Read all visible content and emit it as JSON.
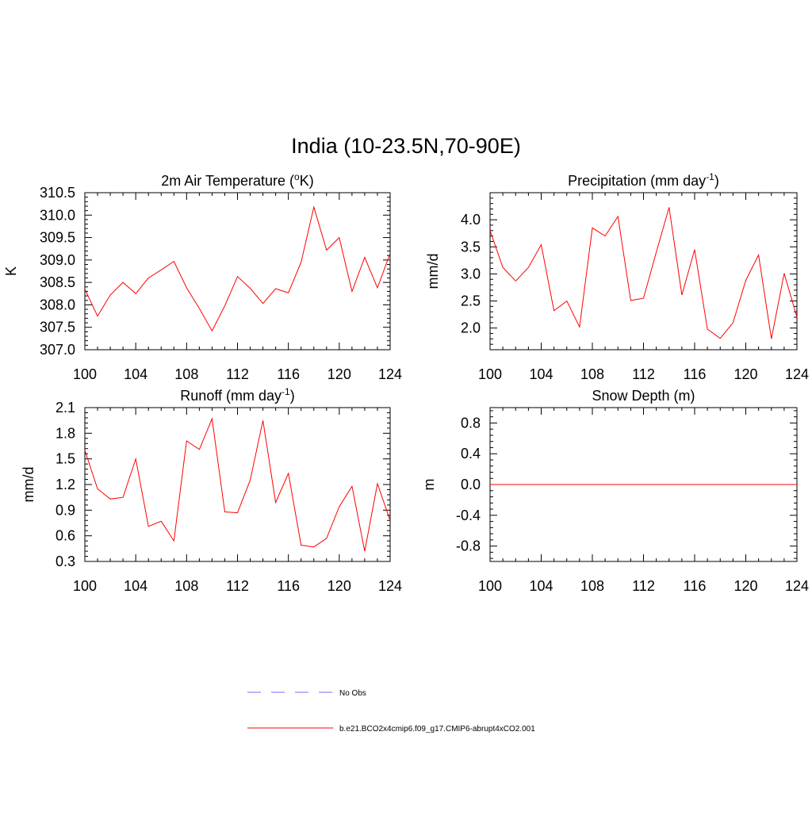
{
  "title": "India (10-23.5N,70-90E)",
  "colors": {
    "model": "#ff0000",
    "obs": "#8c8cff",
    "axis": "#000000"
  },
  "legend": {
    "entries": [
      {
        "label": "No Obs",
        "style": "dashed",
        "color": "#8c8cff"
      },
      {
        "label": "b.e21.BCO2x4cmip6.f09_g17.CMIP6-abrupt4xCO2.001",
        "style": "solid",
        "color": "#ff0000"
      }
    ]
  },
  "chart_data": [
    {
      "type": "line",
      "title": "2m Air Temperature (oK)",
      "title_parts": {
        "pre": "2m Air Temperature (",
        "sup": "o",
        "post": "K)"
      },
      "ylabel": "K",
      "xlim": [
        100,
        124
      ],
      "ylim": [
        307.0,
        310.5
      ],
      "xticks": [
        "100",
        "104",
        "108",
        "112",
        "116",
        "120",
        "124"
      ],
      "yticks": [
        "307.0",
        "307.5",
        "308.0",
        "308.5",
        "309.0",
        "309.5",
        "310.0",
        "310.5"
      ],
      "series": [
        {
          "x": [
            100,
            101,
            102,
            103,
            104,
            105,
            106,
            107,
            108,
            109,
            110,
            111,
            112,
            113,
            114,
            115,
            116,
            117,
            118,
            119,
            120,
            121,
            122,
            123,
            124
          ],
          "values": [
            308.35,
            307.75,
            308.22,
            308.5,
            308.25,
            308.6,
            308.78,
            308.97,
            308.38,
            307.92,
            307.42,
            307.98,
            308.63,
            308.37,
            308.03,
            308.36,
            308.27,
            308.95,
            310.18,
            309.22,
            309.5,
            308.3,
            309.06,
            308.38,
            309.15
          ]
        }
      ]
    },
    {
      "type": "line",
      "title": "Precipitation (mm day-1)",
      "title_parts": {
        "pre": "Precipitation (mm day",
        "sup": "-1",
        "post": ")"
      },
      "ylabel": "mm/d",
      "xlim": [
        100,
        124
      ],
      "ylim": [
        1.6,
        4.5
      ],
      "xticks": [
        "100",
        "104",
        "108",
        "112",
        "116",
        "120",
        "124"
      ],
      "yticks": [
        "2.0",
        "2.5",
        "3.0",
        "3.5",
        "4.0"
      ],
      "series": [
        {
          "x": [
            100,
            101,
            102,
            103,
            104,
            105,
            106,
            107,
            108,
            109,
            110,
            111,
            112,
            113,
            114,
            115,
            116,
            117,
            118,
            119,
            120,
            121,
            122,
            123,
            124
          ],
          "values": [
            3.8,
            3.12,
            2.87,
            3.12,
            3.54,
            2.32,
            2.5,
            2.02,
            3.85,
            3.7,
            4.06,
            2.51,
            2.55,
            3.4,
            4.23,
            2.61,
            3.45,
            1.98,
            1.81,
            2.1,
            2.88,
            3.35,
            1.8,
            3.01,
            2.2
          ]
        }
      ]
    },
    {
      "type": "line",
      "title": "Runoff (mm day-1)",
      "title_parts": {
        "pre": "Runoff (mm day",
        "sup": "-1",
        "post": ")"
      },
      "ylabel": "mm/d",
      "xlim": [
        100,
        124
      ],
      "ylim": [
        0.3,
        2.1
      ],
      "xticks": [
        "100",
        "104",
        "108",
        "112",
        "116",
        "120",
        "124"
      ],
      "yticks": [
        "0.3",
        "0.6",
        "0.9",
        "1.2",
        "1.5",
        "1.8",
        "2.1"
      ],
      "series": [
        {
          "x": [
            100,
            101,
            102,
            103,
            104,
            105,
            106,
            107,
            108,
            109,
            110,
            111,
            112,
            113,
            114,
            115,
            116,
            117,
            118,
            119,
            120,
            121,
            122,
            123,
            124
          ],
          "values": [
            1.6,
            1.15,
            1.03,
            1.05,
            1.5,
            0.71,
            0.77,
            0.54,
            1.71,
            1.61,
            1.97,
            0.88,
            0.87,
            1.25,
            1.95,
            0.99,
            1.33,
            0.49,
            0.47,
            0.57,
            0.94,
            1.18,
            0.42,
            1.21,
            0.78
          ]
        }
      ]
    },
    {
      "type": "line",
      "title": "Snow Depth (m)",
      "title_parts": {
        "pre": "Snow Depth (m)",
        "sup": "",
        "post": ""
      },
      "ylabel": "m",
      "xlim": [
        100,
        124
      ],
      "ylim": [
        -1.0,
        1.0
      ],
      "xticks": [
        "100",
        "104",
        "108",
        "112",
        "116",
        "120",
        "124"
      ],
      "yticks": [
        "-0.8",
        "-0.4",
        "0.0",
        "0.4",
        "0.8"
      ],
      "series": [
        {
          "x": [
            100,
            101,
            102,
            103,
            104,
            105,
            106,
            107,
            108,
            109,
            110,
            111,
            112,
            113,
            114,
            115,
            116,
            117,
            118,
            119,
            120,
            121,
            122,
            123,
            124
          ],
          "values": [
            0,
            0,
            0,
            0,
            0,
            0,
            0,
            0,
            0,
            0,
            0,
            0,
            0,
            0,
            0,
            0,
            0,
            0,
            0,
            0,
            0,
            0,
            0,
            0,
            0
          ]
        }
      ]
    }
  ]
}
